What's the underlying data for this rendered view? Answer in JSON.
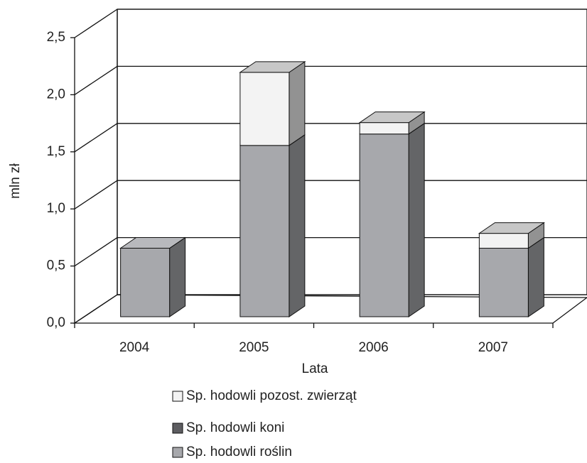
{
  "chart_data": {
    "type": "bar3d_stacked",
    "categories": [
      "2004",
      "2005",
      "2006",
      "2007"
    ],
    "series": [
      {
        "name": "Sp. hodowli roślin",
        "color": "#a7a8ac",
        "values": [
          0.6,
          1.5,
          1.6,
          0.6
        ]
      },
      {
        "name": "Sp. hodowli koni",
        "color": "#5d5d61",
        "values": [
          0,
          0,
          0,
          0
        ]
      },
      {
        "name": "Sp. hodowli pozost. zwierząt",
        "color": "#f3f3f3",
        "values": [
          0,
          0.64,
          0.1,
          0.13
        ]
      }
    ],
    "ylim": [
      0,
      2.5
    ],
    "yticks": [
      {
        "value": 0,
        "label": "0,0"
      },
      {
        "value": 0.5,
        "label": "0,5"
      },
      {
        "value": 1,
        "label": "1,0"
      },
      {
        "value": 1.5,
        "label": "1,5"
      },
      {
        "value": 2,
        "label": "2,0"
      },
      {
        "value": 2.5,
        "label": "2,5"
      }
    ],
    "y_label": "mln zł",
    "x_label": "Lata",
    "grid": true
  }
}
